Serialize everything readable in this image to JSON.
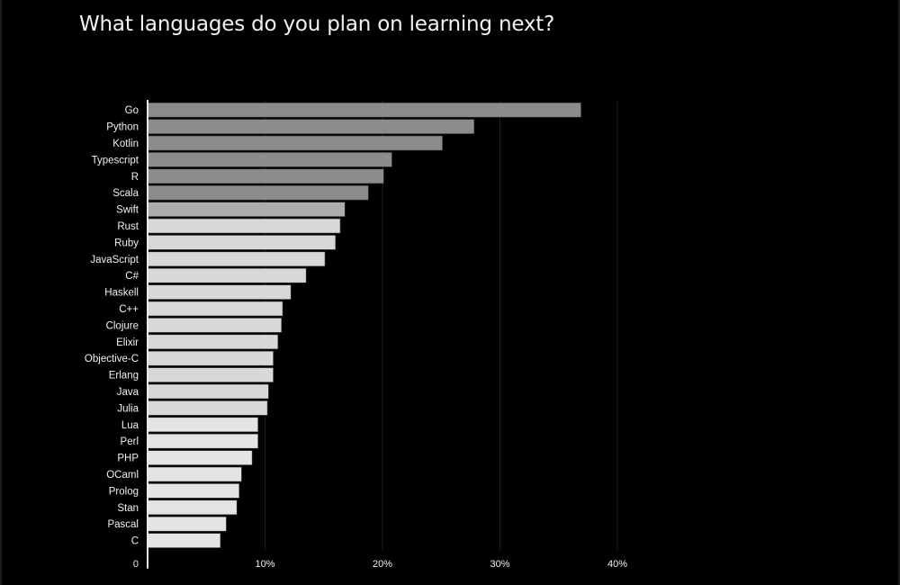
{
  "chart_data": {
    "type": "bar",
    "orientation": "horizontal",
    "title": "What languages do you plan on learning next?",
    "xlabel": "",
    "ylabel": "",
    "xlim": [
      0,
      40
    ],
    "x_ticks": [
      "0",
      "10%",
      "20%",
      "30%",
      "40%"
    ],
    "grid": true,
    "categories": [
      "Go",
      "Python",
      "Kotlin",
      "Typescript",
      "R",
      "Scala",
      "Swift",
      "Rust",
      "Ruby",
      "JavaScript",
      "C#",
      "Haskell",
      "C++",
      "Clojure",
      "Elixir",
      "Objective-C",
      "Erlang",
      "Java",
      "Julia",
      "Lua",
      "Perl",
      "PHP",
      "OCaml",
      "Prolog",
      "Stan",
      "Pascal",
      "C"
    ],
    "values": [
      36.9,
      27.8,
      25.1,
      20.8,
      20.1,
      18.8,
      16.8,
      16.4,
      16.0,
      15.1,
      13.5,
      12.2,
      11.5,
      11.4,
      11.1,
      10.7,
      10.7,
      10.3,
      10.2,
      9.4,
      9.4,
      8.9,
      8.0,
      7.8,
      7.6,
      6.7,
      6.2
    ],
    "bar_colors": [
      "#8c8c8c",
      "#8c8c8c",
      "#8c8c8c",
      "#8c8c8c",
      "#8c8c8c",
      "#8c8c8c",
      "#acacac",
      "#d8d8d8",
      "#d8d8d8",
      "#d8d8d8",
      "#d8d8d8",
      "#d8d8d8",
      "#d8d8d8",
      "#d8d8d8",
      "#d8d8d8",
      "#d8d8d8",
      "#d8d8d8",
      "#d8d8d8",
      "#d8d8d8",
      "#e4e4e4",
      "#e4e4e4",
      "#e4e4e4",
      "#e4e4e4",
      "#e4e4e4",
      "#e4e4e4",
      "#e4e4e4",
      "#e4e4e4"
    ],
    "background": "#000000",
    "text_color": "#f0f0f0"
  }
}
